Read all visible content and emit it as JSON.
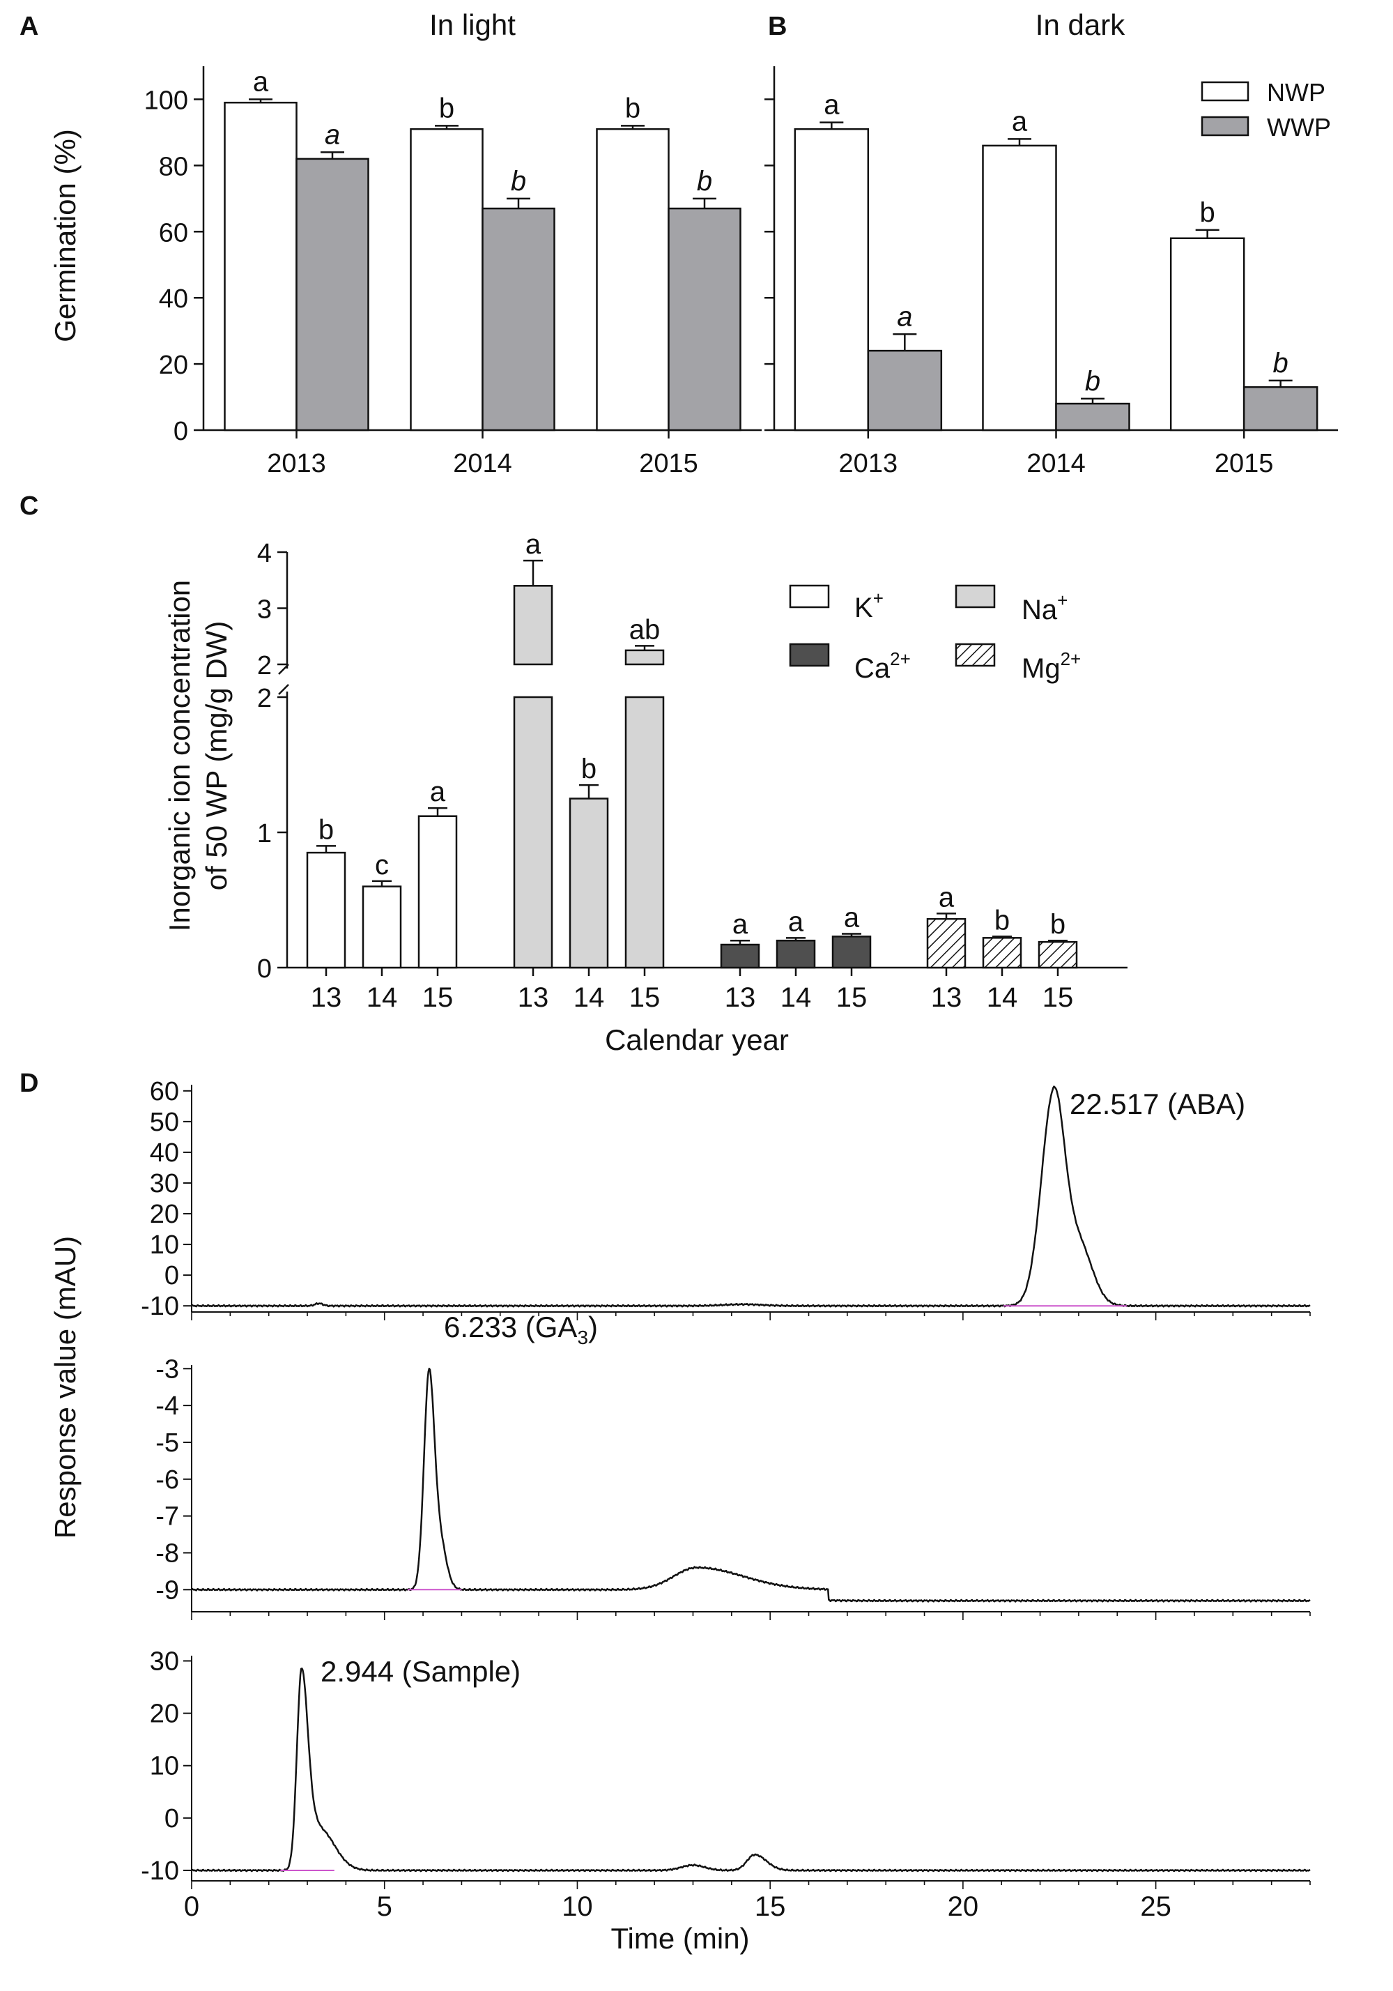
{
  "figure": {
    "panel_labels": [
      "A",
      "B",
      "C",
      "D"
    ]
  },
  "chart_data": [
    {
      "id": "A",
      "type": "bar",
      "title": "In light",
      "categories": [
        "2013",
        "2014",
        "2015"
      ],
      "ylabel": "Germination (%)",
      "xlabel": "",
      "ylim": [
        0,
        110
      ],
      "yticks": [
        0,
        20,
        40,
        60,
        80,
        100
      ],
      "series": [
        {
          "name": "NWP",
          "color": "#ffffff",
          "values": [
            99,
            91,
            91
          ],
          "errors": [
            1,
            1,
            1
          ],
          "letters": [
            "a",
            "b",
            "b"
          ],
          "italic": false
        },
        {
          "name": "WWP",
          "color": "#a3a3a7",
          "values": [
            82,
            67,
            67
          ],
          "errors": [
            2,
            3,
            3
          ],
          "letters": [
            "a",
            "b",
            "b"
          ],
          "italic": true
        }
      ]
    },
    {
      "id": "B",
      "type": "bar",
      "title": "In dark",
      "categories": [
        "2013",
        "2014",
        "2015"
      ],
      "ylim": [
        0,
        110
      ],
      "series": [
        {
          "name": "NWP",
          "color": "#ffffff",
          "values": [
            91,
            86,
            58
          ],
          "errors": [
            2,
            2,
            2.5
          ],
          "letters": [
            "a",
            "a",
            "b"
          ],
          "italic": false
        },
        {
          "name": "WWP",
          "color": "#a3a3a7",
          "values": [
            24,
            8,
            13
          ],
          "errors": [
            5,
            1.5,
            2
          ],
          "letters": [
            "a",
            "b",
            "b"
          ],
          "italic": true
        }
      ],
      "legend": [
        "NWP",
        "WWP"
      ]
    },
    {
      "id": "C",
      "type": "bar",
      "ylabel_line1": "Inorganic ion concentration",
      "ylabel_line2": "of 50 WP (mg/g DW)",
      "xlabel": "Calendar year",
      "categories": [
        "13",
        "14",
        "15"
      ],
      "yticks_lower": [
        0,
        1,
        2
      ],
      "yticks_upper": [
        2,
        3,
        4
      ],
      "broken_axis": {
        "lower": [
          0,
          2
        ],
        "upper": [
          2,
          4
        ]
      },
      "series": [
        {
          "name": "K+",
          "ion": "K",
          "sup": "+",
          "pattern": "white",
          "values": [
            0.85,
            0.6,
            1.12
          ],
          "errors": [
            0.05,
            0.04,
            0.06
          ],
          "letters": [
            "b",
            "c",
            "a"
          ]
        },
        {
          "name": "Na+",
          "ion": "Na",
          "sup": "+",
          "pattern": "lightgray",
          "values": [
            3.4,
            1.25,
            2.25
          ],
          "errors": [
            0.45,
            0.1,
            0.08
          ],
          "letters": [
            "a",
            "b",
            "ab"
          ]
        },
        {
          "name": "Ca2+",
          "ion": "Ca",
          "sup": "2+",
          "pattern": "darkgray",
          "values": [
            0.17,
            0.2,
            0.23
          ],
          "errors": [
            0.03,
            0.02,
            0.02
          ],
          "letters": [
            "a",
            "a",
            "a"
          ]
        },
        {
          "name": "Mg2+",
          "ion": "Mg",
          "sup": "2+",
          "pattern": "hatched",
          "values": [
            0.36,
            0.22,
            0.19
          ],
          "errors": [
            0.04,
            0.01,
            0.01
          ],
          "letters": [
            "a",
            "b",
            "b"
          ]
        }
      ]
    },
    {
      "id": "D",
      "type": "line",
      "ylabel": "Response value (mAU)",
      "xlabel": "Time (min)",
      "xlim": [
        0,
        29
      ],
      "xticks": [
        0,
        5,
        10,
        15,
        20,
        25
      ],
      "traces": [
        {
          "name": "ABA",
          "annotation": "22.517 (ABA)",
          "ylim": [
            -12,
            62
          ],
          "yticks": [
            -10,
            0,
            10,
            20,
            30,
            40,
            50,
            60
          ],
          "baseline": -10,
          "peaks": [
            {
              "t": 22.35,
              "h": 67.5,
              "sl": 0.32,
              "sr": 0.28
            },
            {
              "t": 23.0,
              "h": 20,
              "sl": 0.35,
              "sr": 0.35
            },
            {
              "t": 3.3,
              "h": 0.8,
              "sl": 0.1,
              "sr": 0.1
            },
            {
              "t": 14.3,
              "h": 0.5,
              "sl": 0.5,
              "sr": 0.5
            }
          ]
        },
        {
          "name": "GA3",
          "annotation_main": "6.233 (GA",
          "annotation_sub": "3",
          "annotation_end": ")",
          "ylim": [
            -9.6,
            -2.9
          ],
          "yticks": [
            -9,
            -8,
            -7,
            -6,
            -5,
            -4,
            -3
          ],
          "baseline": -9,
          "peaks": [
            {
              "t": 6.15,
              "h": 5.6,
              "sl": 0.13,
              "sr": 0.13
            },
            {
              "t": 6.4,
              "h": 1.5,
              "sl": 0.15,
              "sr": 0.18
            },
            {
              "t": 13.1,
              "h": 0.6,
              "sl": 0.6,
              "sr": 1.2
            }
          ]
        },
        {
          "name": "Sample",
          "annotation": "2.944 (Sample)",
          "ylim": [
            -12,
            31
          ],
          "yticks": [
            -10,
            0,
            10,
            20,
            30
          ],
          "baseline": -10,
          "peaks": [
            {
              "t": 2.85,
              "h": 38,
              "sl": 0.12,
              "sr": 0.17
            },
            {
              "t": 3.3,
              "h": 8,
              "sl": 0.2,
              "sr": 0.4
            },
            {
              "t": 13.0,
              "h": 1.0,
              "sl": 0.3,
              "sr": 0.3
            },
            {
              "t": 14.6,
              "h": 3.0,
              "sl": 0.2,
              "sr": 0.3
            }
          ]
        }
      ]
    }
  ]
}
